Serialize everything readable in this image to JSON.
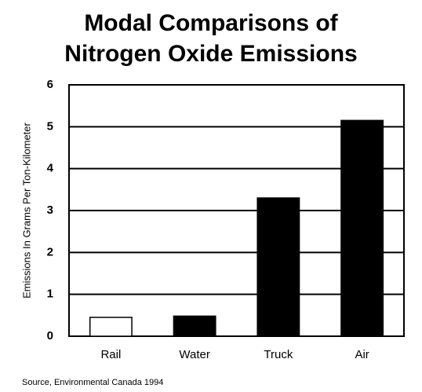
{
  "chart_data": {
    "type": "bar",
    "title": "Modal Comparisons of Nitrogen Oxide Emissions",
    "y_label": "Emissions In Grams Per Ton-Kilometer",
    "source": "Source, Environmental Canada 1994",
    "categories": [
      "Rail",
      "Water",
      "Truck",
      "Air"
    ],
    "values": [
      0.45,
      0.48,
      3.3,
      5.15
    ],
    "colors": [
      "#ffffff",
      "#000000",
      "#000000",
      "#000000"
    ],
    "ylim": [
      0,
      6
    ],
    "yticks": [
      0,
      1,
      2,
      3,
      4,
      5,
      6
    ],
    "grid": true
  }
}
